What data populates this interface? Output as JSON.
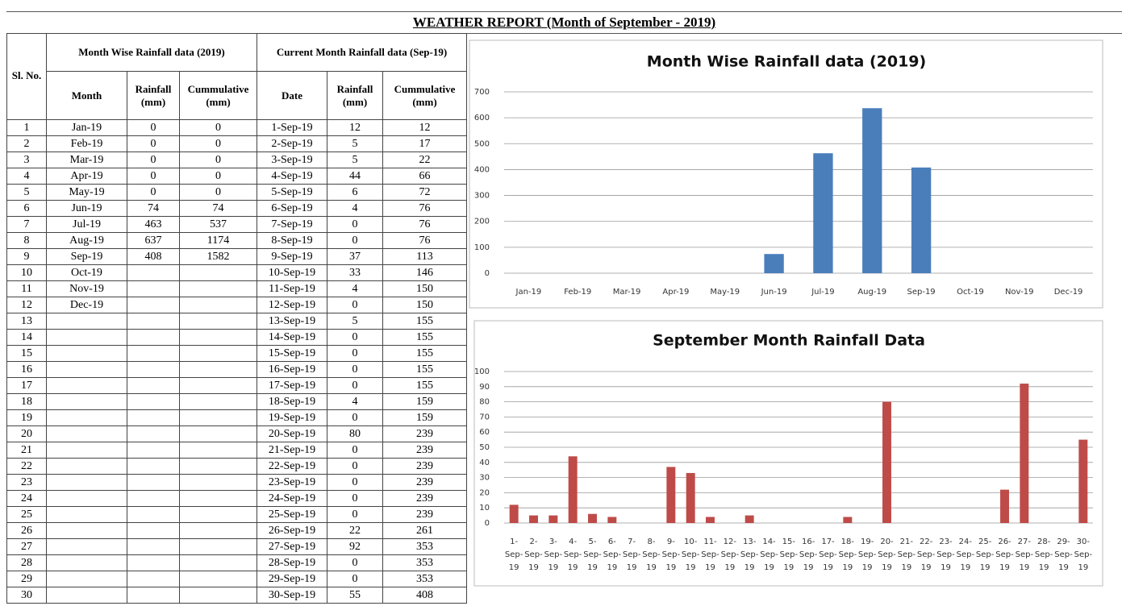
{
  "title": "WEATHER REPORT  (Month of September - 2019)",
  "table": {
    "headers": {
      "sl_no": "Sl. No.",
      "group_monthly": "Month Wise Rainfall data (2019)",
      "group_daily": "Current Month  Rainfall data (Sep-19)",
      "columns": [
        "Month",
        "Rainfall (mm)",
        "Cummulative (mm)",
        "Date",
        "Rainfall (mm)",
        "Cummulative (mm)"
      ]
    },
    "sl_no": [
      1,
      2,
      3,
      4,
      5,
      6,
      7,
      8,
      9,
      10,
      11,
      12,
      13,
      14,
      15,
      16,
      17,
      18,
      19,
      20,
      21,
      22,
      23,
      24,
      25,
      26,
      27,
      28,
      29,
      30
    ],
    "monthly": [
      {
        "month": "Jan-19",
        "rainfall": 0,
        "cumulative": 0
      },
      {
        "month": "Feb-19",
        "rainfall": 0,
        "cumulative": 0
      },
      {
        "month": "Mar-19",
        "rainfall": 0,
        "cumulative": 0
      },
      {
        "month": "Apr-19",
        "rainfall": 0,
        "cumulative": 0
      },
      {
        "month": "May-19",
        "rainfall": 0,
        "cumulative": 0
      },
      {
        "month": "Jun-19",
        "rainfall": 74,
        "cumulative": 74
      },
      {
        "month": "Jul-19",
        "rainfall": 463,
        "cumulative": 537
      },
      {
        "month": "Aug-19",
        "rainfall": 637,
        "cumulative": 1174
      },
      {
        "month": "Sep-19",
        "rainfall": 408,
        "cumulative": 1582
      },
      {
        "month": "Oct-19"
      },
      {
        "month": "Nov-19"
      },
      {
        "month": "Dec-19"
      }
    ],
    "daily": [
      {
        "date": "1-Sep-19",
        "rainfall": 12,
        "cumulative": 12
      },
      {
        "date": "2-Sep-19",
        "rainfall": 5,
        "cumulative": 17
      },
      {
        "date": "3-Sep-19",
        "rainfall": 5,
        "cumulative": 22
      },
      {
        "date": "4-Sep-19",
        "rainfall": 44,
        "cumulative": 66
      },
      {
        "date": "5-Sep-19",
        "rainfall": 6,
        "cumulative": 72
      },
      {
        "date": "6-Sep-19",
        "rainfall": 4,
        "cumulative": 76
      },
      {
        "date": "7-Sep-19",
        "rainfall": 0,
        "cumulative": 76
      },
      {
        "date": "8-Sep-19",
        "rainfall": 0,
        "cumulative": 76
      },
      {
        "date": "9-Sep-19",
        "rainfall": 37,
        "cumulative": 113
      },
      {
        "date": "10-Sep-19",
        "rainfall": 33,
        "cumulative": 146
      },
      {
        "date": "11-Sep-19",
        "rainfall": 4,
        "cumulative": 150
      },
      {
        "date": "12-Sep-19",
        "rainfall": 0,
        "cumulative": 150
      },
      {
        "date": "13-Sep-19",
        "rainfall": 5,
        "cumulative": 155
      },
      {
        "date": "14-Sep-19",
        "rainfall": 0,
        "cumulative": 155
      },
      {
        "date": "15-Sep-19",
        "rainfall": 0,
        "cumulative": 155
      },
      {
        "date": "16-Sep-19",
        "rainfall": 0,
        "cumulative": 155
      },
      {
        "date": "17-Sep-19",
        "rainfall": 0,
        "cumulative": 155
      },
      {
        "date": "18-Sep-19",
        "rainfall": 4,
        "cumulative": 159
      },
      {
        "date": "19-Sep-19",
        "rainfall": 0,
        "cumulative": 159
      },
      {
        "date": "20-Sep-19",
        "rainfall": 80,
        "cumulative": 239
      },
      {
        "date": "21-Sep-19",
        "rainfall": 0,
        "cumulative": 239
      },
      {
        "date": "22-Sep-19",
        "rainfall": 0,
        "cumulative": 239
      },
      {
        "date": "23-Sep-19",
        "rainfall": 0,
        "cumulative": 239
      },
      {
        "date": "24-Sep-19",
        "rainfall": 0,
        "cumulative": 239
      },
      {
        "date": "25-Sep-19",
        "rainfall": 0,
        "cumulative": 239
      },
      {
        "date": "26-Sep-19",
        "rainfall": 22,
        "cumulative": 261
      },
      {
        "date": "27-Sep-19",
        "rainfall": 92,
        "cumulative": 353
      },
      {
        "date": "28-Sep-19",
        "rainfall": 0,
        "cumulative": 353
      },
      {
        "date": "29-Sep-19",
        "rainfall": 0,
        "cumulative": 353
      },
      {
        "date": "30-Sep-19",
        "rainfall": 55,
        "cumulative": 408
      }
    ]
  },
  "chart_data": [
    {
      "type": "bar",
      "title": "Month Wise  Rainfall data (2019)",
      "color": "#4a7ebb",
      "grid": true,
      "categories": [
        "Jan-19",
        "Feb-19",
        "Mar-19",
        "Apr-19",
        "May-19",
        "Jun-19",
        "Jul-19",
        "Aug-19",
        "Sep-19",
        "Oct-19",
        "Nov-19",
        "Dec-19"
      ],
      "values": [
        0,
        0,
        0,
        0,
        0,
        74,
        463,
        637,
        408,
        null,
        null,
        null
      ],
      "ylim": [
        0,
        700
      ],
      "yticks": [
        0,
        100,
        200,
        300,
        400,
        500,
        600,
        700
      ]
    },
    {
      "type": "bar",
      "title": "September  Month Rainfall Data",
      "color": "#be4b48",
      "grid": true,
      "categories": [
        "1-Sep-19",
        "2-Sep-19",
        "3-Sep-19",
        "4-Sep-19",
        "5-Sep-19",
        "6-Sep-19",
        "7-Sep-19",
        "8-Sep-19",
        "9-Sep-19",
        "10-Sep-19",
        "11-Sep-19",
        "12-Sep-19",
        "13-Sep-19",
        "14-Sep-19",
        "15-Sep-19",
        "16-Sep-19",
        "17-Sep-19",
        "18-Sep-19",
        "19-Sep-19",
        "20-Sep-19",
        "21-Sep-19",
        "22-Sep-19",
        "23-Sep-19",
        "24-Sep-19",
        "25-Sep-19",
        "26-Sep-19",
        "27-Sep-19",
        "28-Sep-19",
        "29-Sep-19",
        "30-Sep-19"
      ],
      "values": [
        12,
        5,
        5,
        44,
        6,
        4,
        0,
        0,
        37,
        33,
        4,
        0,
        5,
        0,
        0,
        0,
        0,
        4,
        0,
        80,
        0,
        0,
        0,
        0,
        0,
        22,
        92,
        0,
        0,
        55
      ],
      "ylim": [
        0,
        100
      ],
      "yticks": [
        0,
        10,
        20,
        30,
        40,
        50,
        60,
        70,
        80,
        90,
        100
      ]
    }
  ]
}
